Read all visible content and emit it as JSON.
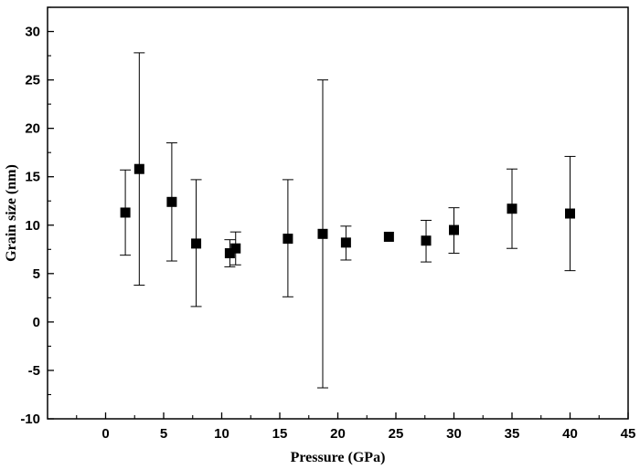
{
  "chart_data": {
    "type": "scatter",
    "title": "",
    "xlabel": "Pressure (GPa)",
    "ylabel": "Grain size (nm)",
    "xlim": [
      -5,
      45
    ],
    "ylim": [
      -10,
      32.5
    ],
    "xticks": [
      0,
      5,
      10,
      15,
      20,
      25,
      30,
      35,
      40,
      45
    ],
    "yticks": [
      -10,
      -5,
      0,
      5,
      10,
      15,
      20,
      25,
      30
    ],
    "grid": false,
    "legend": "none",
    "series": [
      {
        "marker": "square",
        "color": "#000000",
        "points": [
          {
            "x": 1.7,
            "y": 11.3,
            "yerr_low": 6.9,
            "yerr_high": 15.7
          },
          {
            "x": 2.9,
            "y": 15.8,
            "yerr_low": 3.8,
            "yerr_high": 27.8
          },
          {
            "x": 5.7,
            "y": 12.4,
            "yerr_low": 6.3,
            "yerr_high": 18.5
          },
          {
            "x": 7.8,
            "y": 8.1,
            "yerr_low": 1.6,
            "yerr_high": 14.7
          },
          {
            "x": 10.7,
            "y": 7.1,
            "yerr_low": 5.7,
            "yerr_high": 8.5
          },
          {
            "x": 11.2,
            "y": 7.6,
            "yerr_low": 5.9,
            "yerr_high": 9.3
          },
          {
            "x": 15.7,
            "y": 8.6,
            "yerr_low": 2.6,
            "yerr_high": 14.7
          },
          {
            "x": 18.7,
            "y": 9.1,
            "yerr_low": -6.8,
            "yerr_high": 25.0
          },
          {
            "x": 20.7,
            "y": 8.2,
            "yerr_low": 6.4,
            "yerr_high": 9.9
          },
          {
            "x": 24.4,
            "y": 8.8,
            "yerr_low": 8.8,
            "yerr_high": 8.8
          },
          {
            "x": 27.6,
            "y": 8.4,
            "yerr_low": 6.2,
            "yerr_high": 10.5
          },
          {
            "x": 30.0,
            "y": 9.5,
            "yerr_low": 7.1,
            "yerr_high": 11.8
          },
          {
            "x": 35.0,
            "y": 11.7,
            "yerr_low": 7.6,
            "yerr_high": 15.8
          },
          {
            "x": 40.0,
            "y": 11.2,
            "yerr_low": 5.3,
            "yerr_high": 17.1
          }
        ]
      }
    ]
  }
}
